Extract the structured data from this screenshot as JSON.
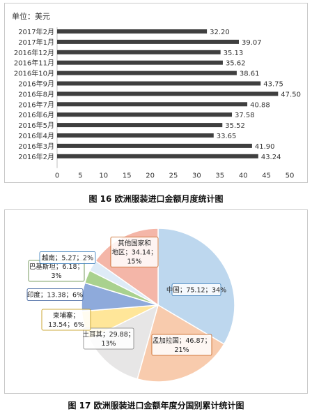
{
  "chart_data": [
    {
      "type": "bar",
      "orientation": "horizontal",
      "unit_label": "单位：美元",
      "categories": [
        "2017年2月",
        "2017年1月",
        "2016年12月",
        "2016年11月",
        "2016年10月",
        "2016年9月",
        "2016年8月",
        "2016年7月",
        "2016年6月",
        "2016年5月",
        "2016年4月",
        "2016年3月",
        "2016年2月"
      ],
      "values": [
        32.2,
        39.07,
        35.13,
        35.62,
        38.61,
        43.75,
        47.5,
        40.88,
        37.58,
        35.52,
        33.65,
        41.9,
        43.24
      ],
      "value_labels": [
        "32.20",
        "39.07",
        "35.13",
        "35.62",
        "38.61",
        "43.75",
        "47.50",
        "40.88",
        "37.58",
        "35.52",
        "33.65",
        "41.90",
        "43.24"
      ],
      "xlim": [
        0,
        50
      ],
      "xticks": [
        "0",
        "5",
        "10",
        "15",
        "20",
        "25",
        "30",
        "35",
        "40",
        "45",
        "50"
      ],
      "bar_color": "#3f3f3f",
      "caption": "图 16  欧洲服装进口金额月度统计图"
    },
    {
      "type": "pie",
      "slices": [
        {
          "name": "中国",
          "value": 75.12,
          "percent": 34,
          "color": "#bdd7ee",
          "edge": "#2e75b6",
          "label": "中国；75.12；34%"
        },
        {
          "name": "孟加拉国",
          "value": 46.87,
          "percent": 21,
          "color": "#f8cbad",
          "edge": "#c55a11",
          "label": "孟加拉国；46.87；21%"
        },
        {
          "name": "土耳其",
          "value": 29.88,
          "percent": 13,
          "color": "#e7e6e6",
          "edge": "#7f7f7f",
          "label": "土耳其；29.88；13%"
        },
        {
          "name": "柬埔寨",
          "value": 13.54,
          "percent": 6,
          "color": "#ffe699",
          "edge": "#bf9000",
          "label": "柬埔寨；13.54；6%"
        },
        {
          "name": "印度",
          "value": 13.38,
          "percent": 6,
          "color": "#8eaadb",
          "edge": "#2f5597",
          "label": "印度；13.38；6%"
        },
        {
          "name": "巴基斯坦",
          "value": 6.18,
          "percent": 3,
          "color": "#a9d18e",
          "edge": "#538135",
          "label": "巴基斯坦；6.18；3%"
        },
        {
          "name": "越南",
          "value": 5.27,
          "percent": 2,
          "color": "#deebf7",
          "edge": "#2e75b6",
          "label": "越南；5.27；2%"
        },
        {
          "name": "其他国家和地区",
          "value": 34.14,
          "percent": 15,
          "color": "#f4b6a8",
          "edge": "#c55a11",
          "label": "其他国家和地区；34.14；15%"
        }
      ],
      "caption": "图 17  欧洲服装进口金额年度分国别累计统计图"
    }
  ]
}
